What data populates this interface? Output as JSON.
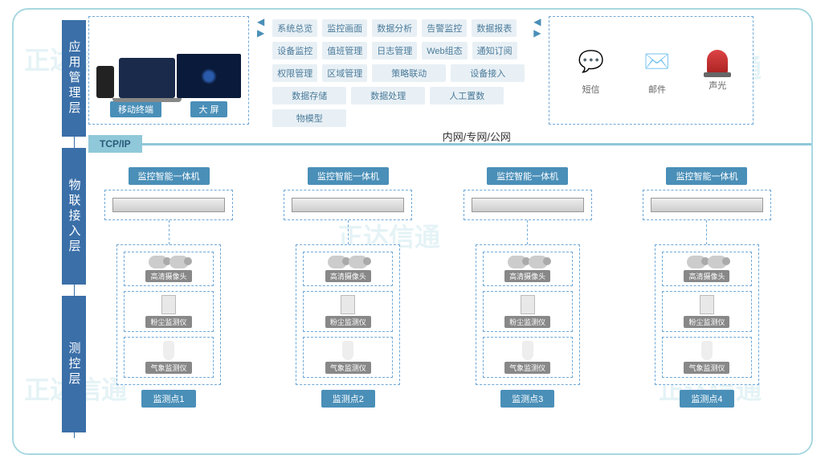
{
  "layers": {
    "app": "应用管理层",
    "iot": "物联接入层",
    "sense": "测控层"
  },
  "terminals": {
    "mobile": "移动终端",
    "bigscreen": "大 屏"
  },
  "modules": [
    "系统总览",
    "监控画面",
    "数据分析",
    "告警监控",
    "数据报表",
    "设备监控",
    "值班管理",
    "日志管理",
    "Web组态",
    "通知订阅",
    "权限管理",
    "区域管理",
    "策略联动",
    "设备接入",
    "数据存储",
    "数据处理",
    "人工置数",
    "物模型"
  ],
  "alerts": {
    "sms": "短信",
    "email": "邮件",
    "sound": "声光"
  },
  "network": {
    "protocol": "TCP/IP",
    "text": "内网/专网/公网"
  },
  "machine_label": "监控智能一体机",
  "sensors": {
    "camera": "高清摄像头",
    "dust": "粉尘监测仪",
    "weather": "气象监测仪"
  },
  "points": [
    "监测点1",
    "监测点2",
    "监测点3",
    "监测点4"
  ],
  "colors": {
    "frame": "#a8d8e0",
    "layer_bg": "#3b6fa8",
    "accent": "#4a8fb8",
    "module_bg": "#e8f0f5",
    "netbar": "#8fc8d8"
  }
}
